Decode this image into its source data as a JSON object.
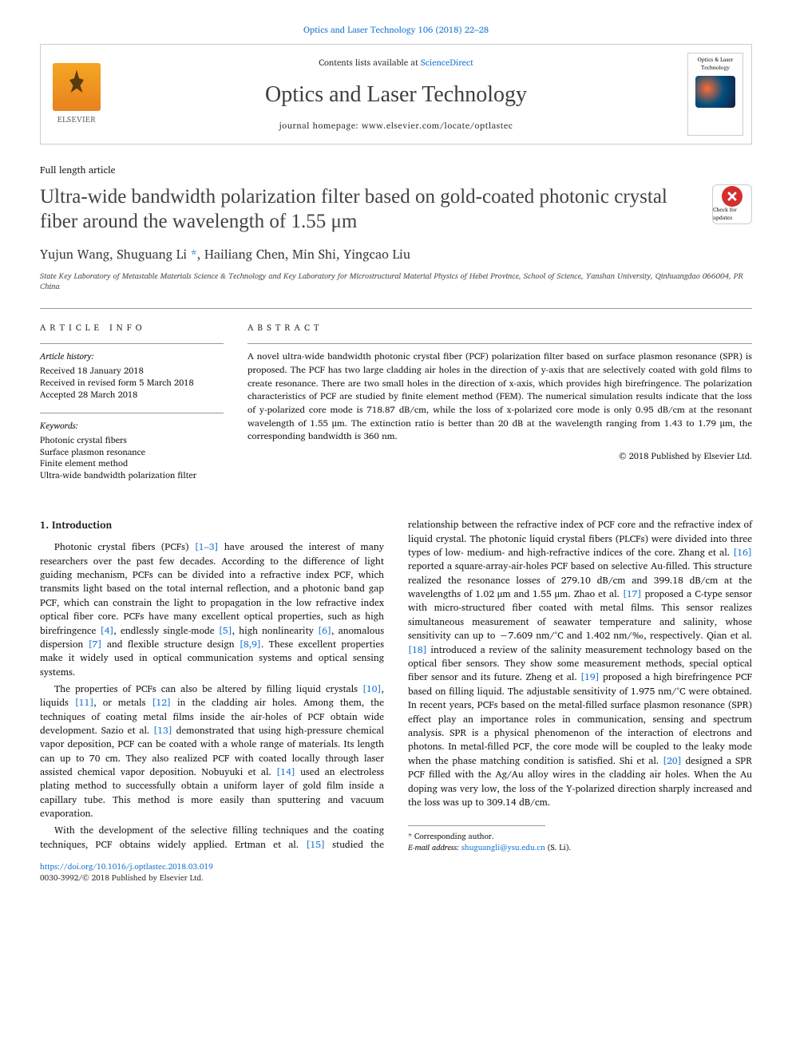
{
  "citation": "Optics and Laser Technology 106 (2018) 22–28",
  "header": {
    "contents_prefix": "Contents lists available at ",
    "contents_link": "ScienceDirect",
    "journal_name": "Optics and Laser Technology",
    "homepage_prefix": "journal homepage: ",
    "homepage": "www.elsevier.com/locate/optlastec",
    "publisher": "ELSEVIER",
    "cover_label1": "Optics & Laser",
    "cover_label2": "Technology"
  },
  "article_type": "Full length article",
  "title": "Ultra-wide bandwidth polarization filter based on gold-coated photonic crystal fiber around the wavelength of 1.55 μm",
  "crossmark": "Check for updates",
  "authors": "Yujun Wang, Shuguang Li *, Hailiang Chen, Min Shi, Yingcao Liu",
  "affiliation": "State Key Laboratory of Metastable Materials Science & Technology and Key Laboratory for Microstructural Material Physics of Hebei Province, School of Science, Yanshan University, Qinhuangdao 066004, PR China",
  "info": {
    "label_info": "ARTICLE INFO",
    "label_abstract": "ABSTRACT",
    "history_heading": "Article history:",
    "history_received": "Received 18 January 2018",
    "history_revised": "Received in revised form 5 March 2018",
    "history_accepted": "Accepted 28 March 2018",
    "keywords_heading": "Keywords:",
    "kw1": "Photonic crystal fibers",
    "kw2": "Surface plasmon resonance",
    "kw3": "Finite element method",
    "kw4": "Ultra-wide bandwidth polarization filter"
  },
  "abstract": "A novel ultra-wide bandwidth photonic crystal fiber (PCF) polarization filter based on surface plasmon resonance (SPR) is proposed. The PCF has two large cladding air holes in the direction of y-axis that are selectively coated with gold films to create resonance. There are two small holes in the direction of x-axis, which provides high birefringence. The polarization characteristics of PCF are studied by finite element method (FEM). The numerical simulation results indicate that the loss of y-polarized core mode is 718.87 dB/cm, while the loss of x-polarized core mode is only 0.95 dB/cm at the resonant wavelength of 1.55 μm. The extinction ratio is better than 20 dB at the wavelength ranging from 1.43 to 1.79 μm, the corresponding bandwidth is 360 nm.",
  "copyright": "© 2018 Published by Elsevier Ltd.",
  "section1_heading": "1. Introduction",
  "paragraphs": {
    "p1a": "Photonic crystal fibers (PCFs) ",
    "p1_ref1": "[1–3]",
    "p1b": " have aroused the interest of many researchers over the past few decades. According to the difference of light guiding mechanism, PCFs can be divided into a refractive index PCF, which transmits light based on the total internal reflection, and a photonic band gap PCF, which can constrain the light to propagation in the low refractive index optical fiber core. PCFs have many excellent optical properties, such as high birefringence ",
    "p1_ref2": "[4]",
    "p1c": ", endlessly single-mode ",
    "p1_ref3": "[5]",
    "p1d": ", high nonlinearity ",
    "p1_ref4": "[6]",
    "p1e": ", anomalous dispersion ",
    "p1_ref5": "[7]",
    "p1f": " and flexible structure design ",
    "p1_ref6": "[8,9]",
    "p1g": ". These excellent properties make it widely used in optical communication systems and optical sensing systems.",
    "p2a": "The properties of PCFs can also be altered by filling liquid crystals ",
    "p2_ref1": "[10]",
    "p2b": ", liquids ",
    "p2_ref2": "[11]",
    "p2c": ", or metals ",
    "p2_ref3": "[12]",
    "p2d": " in the cladding air holes. Among them, the techniques of coating metal films inside the air-holes of PCF obtain wide development. Sazio et al. ",
    "p2_ref4": "[13]",
    "p2e": " demonstrated that using high-pressure chemical vapor deposition, PCF can be coated with a whole range of materials. Its length can up to 70 cm. They also realized PCF with coated locally through laser assisted chemical vapor deposition. Nobuyuki et al. ",
    "p2_ref5": "[14]",
    "p2f": " used an electroless plating method to successfully obtain a uniform layer of gold film inside a capillary tube. This method is more easily than sputtering and vacuum evaporation.",
    "p3a": "With the development of the selective filling techniques and the coating techniques, PCF obtains widely applied. Ertman et al. ",
    "p3_ref1": "[15]",
    "p3b": " studied the relationship between the refractive index of PCF core and the refractive index of liquid crystal. The photonic liquid crystal fibers (PLCFs) were divided into three types of low- medium- and high-refractive indices of the core. Zhang et al. ",
    "p3_ref2": "[16]",
    "p3c": " reported a square-array-air-holes PCF based on selective Au-filled. This structure realized the resonance losses of 279.10 dB/cm and 399.18 dB/cm at the wavelengths of 1.02 μm and 1.55 μm. Zhao et al. ",
    "p3_ref3": "[17]",
    "p3d": " proposed a C-type sensor with micro-structured fiber coated with metal films. This sensor realizes simultaneous measurement of seawater temperature and salinity, whose sensitivity can up to −7.609 nm/°C and 1.402 nm/‰, respectively. Qian et al. ",
    "p3_ref4": "[18]",
    "p3e": " introduced a review of the salinity measurement technology based on the optical fiber sensors. They show some measurement methods, special optical fiber sensor and its future. Zheng et al. ",
    "p3_ref5": "[19]",
    "p3f": " proposed a high birefringence PCF based on filling liquid. The adjustable sensitivity of 1.975 nm/°C were obtained. In recent years, PCFs based on the metal-filled surface plasmon resonance (SPR) effect play an importance roles in communication, sensing and spectrum analysis. SPR is a physical phenomenon of the interaction of electrons and photons. In metal-filled PCF, the core mode will be coupled to the leaky mode when the phase matching condition is satisfied. Shi et al. ",
    "p3_ref6": "[20]",
    "p3g": " designed a SPR PCF filled with the Ag/Au alloy wires in the cladding air holes. When the Au doping was very low, the loss of the Y-polarized direction sharply increased and the loss was up to 309.14 dB/cm."
  },
  "footnote": {
    "corresp": "* Corresponding author.",
    "email_label": "E-mail address: ",
    "email": "shuguangli@ysu.edu.cn",
    "email_suffix": " (S. Li)."
  },
  "footer": {
    "doi": "https://doi.org/10.1016/j.optlastec.2018.03.019",
    "issn": "0030-3992/© 2018 Published by Elsevier Ltd."
  }
}
